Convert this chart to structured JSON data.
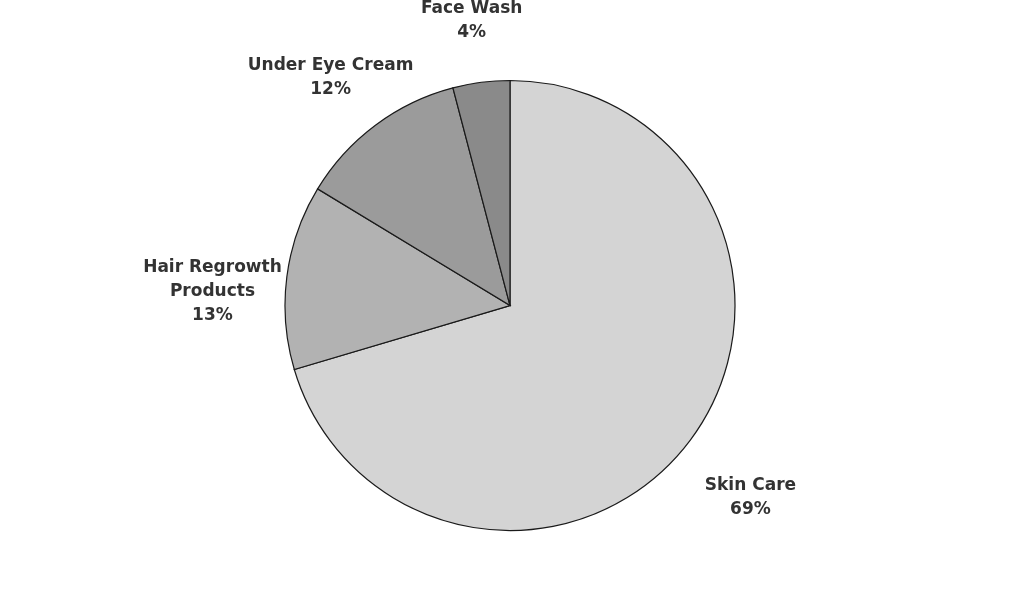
{
  "chart_data": {
    "type": "pie",
    "categories": [
      "Skin Care",
      "Hair Regrowth Products",
      "Under Eye Cream",
      "Face Wash"
    ],
    "values": [
      69,
      13,
      12,
      4
    ],
    "value_labels": [
      "69%",
      "13%",
      "12%",
      "4%"
    ],
    "colors": [
      "#d4d4d4",
      "#b2b2b2",
      "#9b9b9b",
      "#8a8a8a"
    ],
    "legend": false
  }
}
